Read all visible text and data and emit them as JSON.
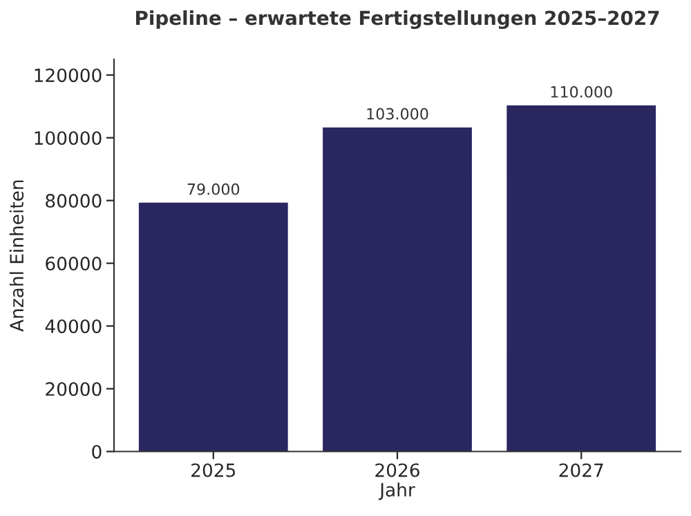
{
  "chart_data": {
    "type": "bar",
    "title": "Pipeline – erwartete Fertigstellungen 2025–2027",
    "xlabel": "Jahr",
    "ylabel": "Anzahl Einheiten",
    "categories": [
      "2025",
      "2026",
      "2027"
    ],
    "values": [
      79000,
      103000,
      110000
    ],
    "value_labels": [
      "79.000",
      "103.000",
      "110.000"
    ],
    "color": "#2a2660",
    "ylim": [
      0,
      125000
    ],
    "yticks": [
      0,
      20000,
      40000,
      60000,
      80000,
      100000,
      120000
    ],
    "grid": false,
    "legend": false
  }
}
